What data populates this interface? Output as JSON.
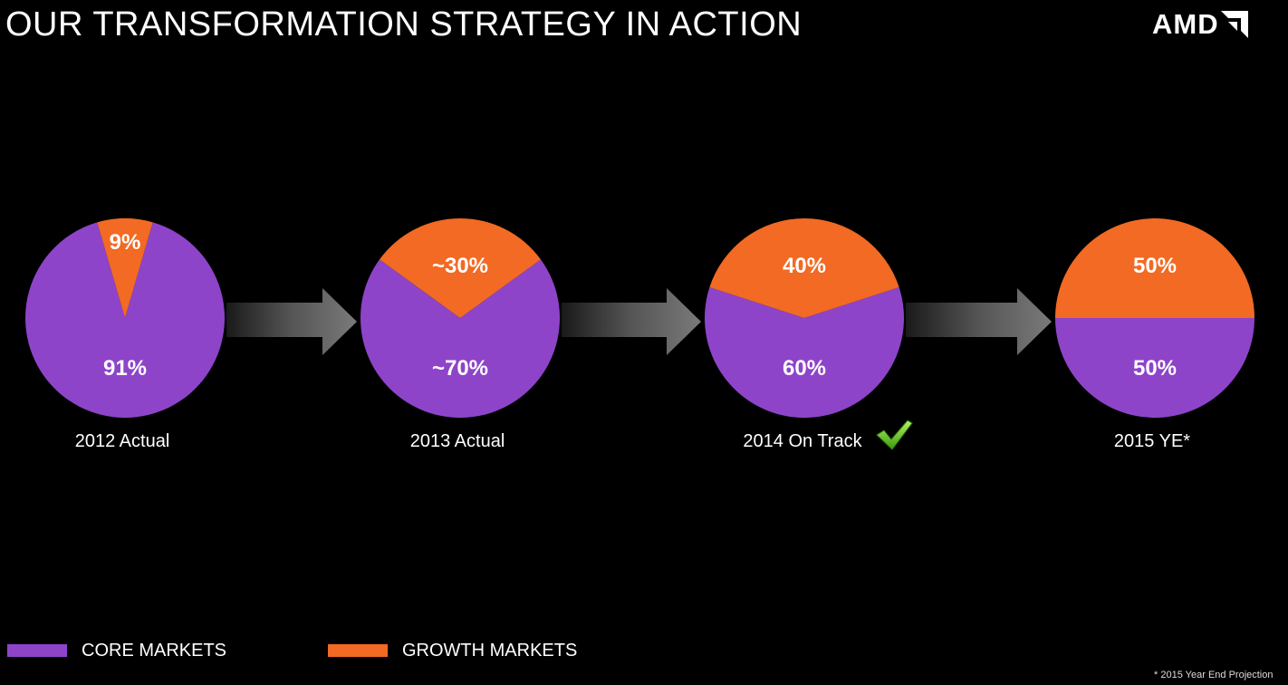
{
  "title": "OUR TRANSFORMATION STRATEGY IN ACTION",
  "logo_text": "AMD",
  "colors": {
    "core": "#8e44c9",
    "growth": "#f26a24",
    "background": "#000000"
  },
  "chart_data": {
    "type": "pie",
    "series_names": [
      "CORE MARKETS",
      "GROWTH MARKETS"
    ],
    "pies": [
      {
        "label": "2012 Actual",
        "core": 91,
        "growth": 9,
        "core_label": "91%",
        "growth_label": "9%"
      },
      {
        "label": "2013 Actual",
        "core": 70,
        "growth": 30,
        "core_label": "~70%",
        "growth_label": "~30%"
      },
      {
        "label": "2014 On Track",
        "core": 60,
        "growth": 40,
        "core_label": "60%",
        "growth_label": "40%",
        "checkmark": true
      },
      {
        "label": "2015 YE*",
        "core": 50,
        "growth": 50,
        "core_label": "50%",
        "growth_label": "50%"
      }
    ]
  },
  "legend": {
    "core_label": "CORE MARKETS",
    "growth_label": "GROWTH MARKETS"
  },
  "footnote": "* 2015 Year End Projection",
  "icons": {
    "logo_mark": "amd-arrow-icon",
    "check": "checkmark-icon",
    "arrow": "right-arrow-icon"
  }
}
